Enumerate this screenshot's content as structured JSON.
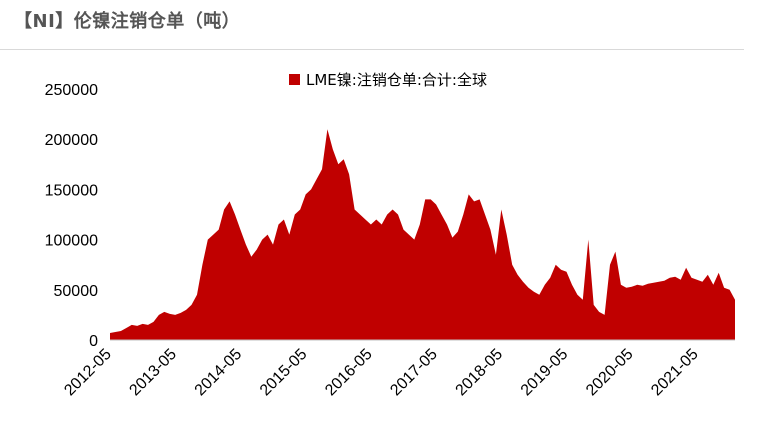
{
  "header": {
    "title": "【NI】伦镍注销仓单（吨）"
  },
  "colors": {
    "series": "#c00000",
    "title": "#555555",
    "rule": "#d9d9d9"
  },
  "chart_data": {
    "type": "area",
    "title": "【NI】伦镍注销仓单（吨）",
    "xlabel": "",
    "ylabel": "",
    "ylim": [
      0,
      250000
    ],
    "yticks": [
      "0",
      "50000",
      "100000",
      "150000",
      "200000",
      "250000"
    ],
    "xticks": [
      "2012-05",
      "2013-05",
      "2014-05",
      "2015-05",
      "2016-05",
      "2017-05",
      "2018-05",
      "2019-05",
      "2020-05",
      "2021-05"
    ],
    "legend": {
      "position": "top-center",
      "marker": "square"
    },
    "x_start": "2012-05",
    "x_end": "2021-12",
    "grid": false,
    "series": [
      {
        "name": "LME镍:注销仓单:合计:全球",
        "color": "#c00000",
        "points": [
          [
            "2012-05",
            7000
          ],
          [
            "2012-06",
            8000
          ],
          [
            "2012-07",
            9000
          ],
          [
            "2012-08",
            12000
          ],
          [
            "2012-09",
            15000
          ],
          [
            "2012-10",
            14000
          ],
          [
            "2012-11",
            16000
          ],
          [
            "2012-12",
            15000
          ],
          [
            "2013-01",
            18000
          ],
          [
            "2013-02",
            25000
          ],
          [
            "2013-03",
            28000
          ],
          [
            "2013-04",
            26000
          ],
          [
            "2013-05",
            25000
          ],
          [
            "2013-06",
            27000
          ],
          [
            "2013-07",
            30000
          ],
          [
            "2013-08",
            35000
          ],
          [
            "2013-09",
            45000
          ],
          [
            "2013-10",
            75000
          ],
          [
            "2013-11",
            100000
          ],
          [
            "2013-12",
            105000
          ],
          [
            "2014-01",
            110000
          ],
          [
            "2014-02",
            130000
          ],
          [
            "2014-03",
            138000
          ],
          [
            "2014-04",
            125000
          ],
          [
            "2014-05",
            110000
          ],
          [
            "2014-06",
            95000
          ],
          [
            "2014-07",
            83000
          ],
          [
            "2014-08",
            90000
          ],
          [
            "2014-09",
            100000
          ],
          [
            "2014-10",
            105000
          ],
          [
            "2014-11",
            95000
          ],
          [
            "2014-12",
            115000
          ],
          [
            "2015-01",
            120000
          ],
          [
            "2015-02",
            105000
          ],
          [
            "2015-03",
            125000
          ],
          [
            "2015-04",
            130000
          ],
          [
            "2015-05",
            145000
          ],
          [
            "2015-06",
            150000
          ],
          [
            "2015-07",
            160000
          ],
          [
            "2015-08",
            170000
          ],
          [
            "2015-09",
            210000
          ],
          [
            "2015-10",
            190000
          ],
          [
            "2015-11",
            175000
          ],
          [
            "2015-12",
            180000
          ],
          [
            "2016-01",
            165000
          ],
          [
            "2016-02",
            130000
          ],
          [
            "2016-03",
            125000
          ],
          [
            "2016-04",
            120000
          ],
          [
            "2016-05",
            115000
          ],
          [
            "2016-06",
            120000
          ],
          [
            "2016-07",
            115000
          ],
          [
            "2016-08",
            125000
          ],
          [
            "2016-09",
            130000
          ],
          [
            "2016-10",
            125000
          ],
          [
            "2016-11",
            110000
          ],
          [
            "2016-12",
            105000
          ],
          [
            "2017-01",
            100000
          ],
          [
            "2017-02",
            115000
          ],
          [
            "2017-03",
            140000
          ],
          [
            "2017-04",
            140000
          ],
          [
            "2017-05",
            135000
          ],
          [
            "2017-06",
            125000
          ],
          [
            "2017-07",
            115000
          ],
          [
            "2017-08",
            102000
          ],
          [
            "2017-09",
            108000
          ],
          [
            "2017-10",
            125000
          ],
          [
            "2017-11",
            145000
          ],
          [
            "2017-12",
            138000
          ],
          [
            "2018-01",
            140000
          ],
          [
            "2018-02",
            125000
          ],
          [
            "2018-03",
            110000
          ],
          [
            "2018-04",
            85000
          ],
          [
            "2018-05",
            130000
          ],
          [
            "2018-06",
            105000
          ],
          [
            "2018-07",
            75000
          ],
          [
            "2018-08",
            65000
          ],
          [
            "2018-09",
            58000
          ],
          [
            "2018-10",
            52000
          ],
          [
            "2018-11",
            48000
          ],
          [
            "2018-12",
            45000
          ],
          [
            "2019-01",
            55000
          ],
          [
            "2019-02",
            62000
          ],
          [
            "2019-03",
            75000
          ],
          [
            "2019-04",
            70000
          ],
          [
            "2019-05",
            68000
          ],
          [
            "2019-06",
            55000
          ],
          [
            "2019-07",
            45000
          ],
          [
            "2019-08",
            40000
          ],
          [
            "2019-09",
            100000
          ],
          [
            "2019-10",
            35000
          ],
          [
            "2019-11",
            28000
          ],
          [
            "2019-12",
            25000
          ],
          [
            "2020-01",
            75000
          ],
          [
            "2020-02",
            88000
          ],
          [
            "2020-03",
            55000
          ],
          [
            "2020-04",
            52000
          ],
          [
            "2020-05",
            53000
          ],
          [
            "2020-06",
            55000
          ],
          [
            "2020-07",
            54000
          ],
          [
            "2020-08",
            56000
          ],
          [
            "2020-09",
            57000
          ],
          [
            "2020-10",
            58000
          ],
          [
            "2020-11",
            59000
          ],
          [
            "2020-12",
            62000
          ],
          [
            "2021-01",
            63000
          ],
          [
            "2021-02",
            60000
          ],
          [
            "2021-03",
            72000
          ],
          [
            "2021-04",
            62000
          ],
          [
            "2021-05",
            60000
          ],
          [
            "2021-06",
            58000
          ],
          [
            "2021-07",
            65000
          ],
          [
            "2021-08",
            55000
          ],
          [
            "2021-09",
            67000
          ],
          [
            "2021-10",
            52000
          ],
          [
            "2021-11",
            50000
          ],
          [
            "2021-12",
            40000
          ]
        ]
      }
    ]
  }
}
